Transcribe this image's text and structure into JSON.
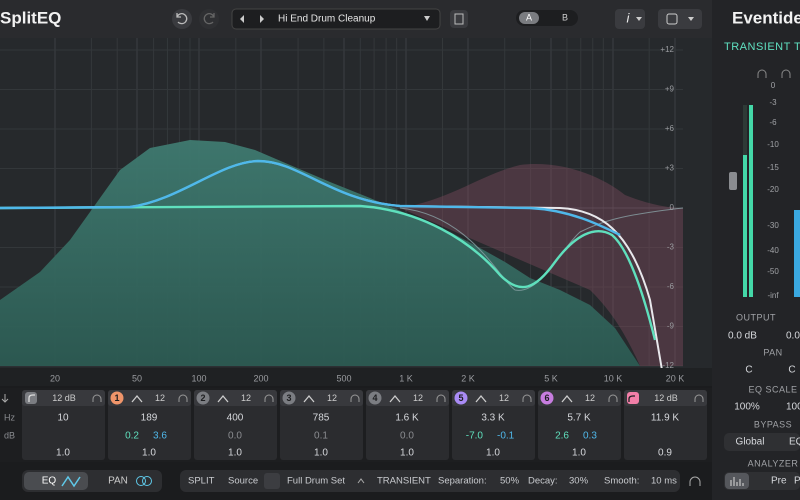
{
  "header": {
    "logo": "SplitEQ",
    "preset": "Hi End Drum Cleanup",
    "ab": [
      "A",
      "B"
    ],
    "info": "i"
  },
  "graph": {
    "db_scale": [
      "+12",
      "+9",
      "+6",
      "+3",
      "0",
      "-3",
      "-6",
      "-9",
      "-12"
    ],
    "freq_scale": [
      "20",
      "50",
      "100",
      "200",
      "500",
      "1 K",
      "2 K",
      "5 K",
      "10 K",
      "20 K"
    ]
  },
  "bands": {
    "row_labels": [
      "Hz",
      "dB"
    ],
    "items": [
      {
        "slope": "12 dB",
        "freq": "10",
        "q": "1.0"
      },
      {
        "badge": "1",
        "slope": "12",
        "freq": "189",
        "gain_a": "0.2",
        "gain_b": "3.6",
        "q": "1.0"
      },
      {
        "badge": "2",
        "slope": "12",
        "freq": "400",
        "gain": "0.0",
        "q": "1.0"
      },
      {
        "badge": "3",
        "slope": "12",
        "freq": "785",
        "gain": "0.1",
        "q": "1.0"
      },
      {
        "badge": "4",
        "slope": "12",
        "freq": "1.6 K",
        "gain": "0.0",
        "q": "1.0"
      },
      {
        "badge": "5",
        "slope": "12",
        "freq": "3.3 K",
        "gain_a": "-7.0",
        "gain_b": "-0.1",
        "q": "1.0"
      },
      {
        "badge": "6",
        "slope": "12",
        "freq": "5.7 K",
        "gain_a": "2.6",
        "gain_b": "0.3",
        "q": "1.0"
      },
      {
        "slope": "12 dB",
        "freq": "11.9 K",
        "q": "0.9"
      }
    ]
  },
  "bottom": {
    "eq": "EQ",
    "pan": "PAN",
    "split": "SPLIT",
    "source_label": "Source",
    "source": "Full Drum Set",
    "transient": "TRANSIENT",
    "separation_label": "Separation:",
    "separation": "50%",
    "decay_label": "Decay:",
    "decay": "30%",
    "smooth_label": "Smooth:",
    "smooth": "10 ms"
  },
  "side": {
    "brand": "Eventide",
    "mode": "TRANSIENT TO",
    "meter_scale": [
      "0",
      "-3",
      "-6",
      "-10",
      "-15",
      "-20",
      "-30",
      "-40",
      "-50",
      "-inf"
    ],
    "output": "OUTPUT",
    "output_values": [
      "0.0 dB",
      "0.0"
    ],
    "pan": "PAN",
    "pan_values": [
      "C",
      "C"
    ],
    "eq_scale": "EQ SCALE",
    "eq_scale_values": [
      "100%",
      "100"
    ],
    "bypass": "BYPASS",
    "bypass_buttons": [
      "Global",
      "EQ"
    ],
    "analyzer": "ANALYZER",
    "analyzer_buttons": [
      "Pre",
      "P"
    ]
  }
}
